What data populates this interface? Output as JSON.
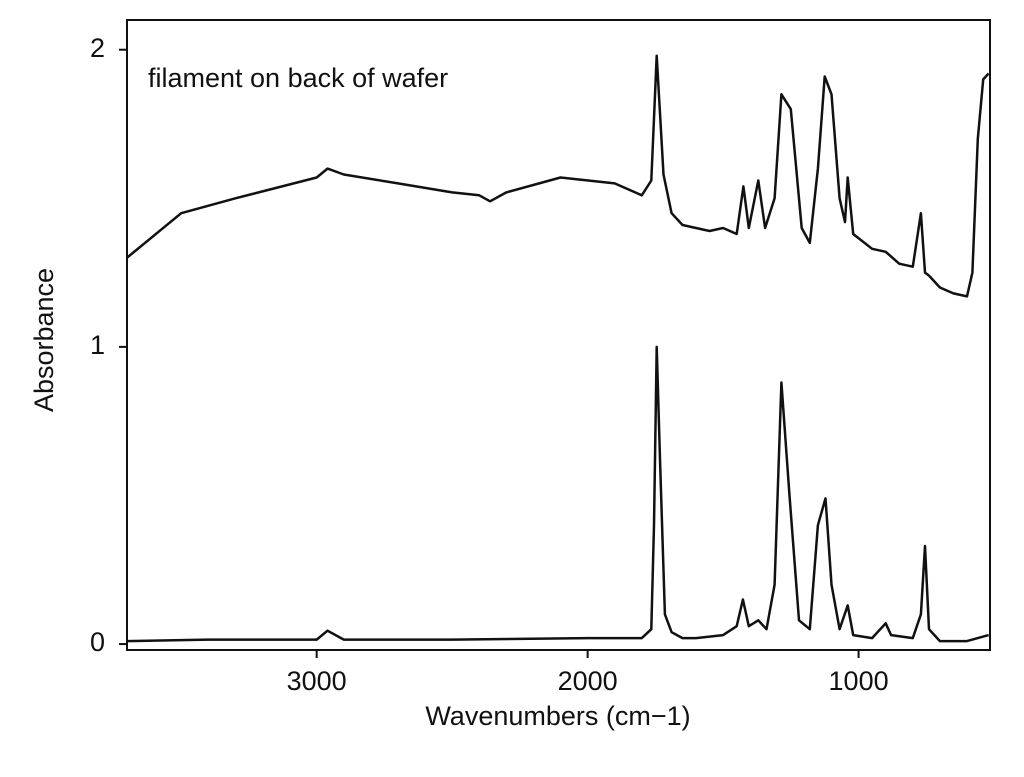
{
  "chart_data": {
    "type": "line",
    "annotation": "filament on back of wafer",
    "xlabel": "Wavenumbers (cm−1)",
    "ylabel": "Absorbance",
    "xlim": [
      3700,
      515
    ],
    "ylim": [
      -0.02,
      2.1
    ],
    "xticks": [
      3000,
      2000,
      1000
    ],
    "yticks": [
      0,
      1,
      2
    ],
    "series": [
      {
        "color": "#111111",
        "x": [
          3700,
          3500,
          3300,
          3000,
          2960,
          2900,
          2700,
          2500,
          2400,
          2360,
          2300,
          2100,
          1900,
          1800,
          1765,
          1745,
          1720,
          1690,
          1650,
          1600,
          1550,
          1500,
          1450,
          1425,
          1405,
          1370,
          1345,
          1310,
          1285,
          1250,
          1210,
          1180,
          1150,
          1125,
          1100,
          1070,
          1050,
          1040,
          1020,
          950,
          900,
          850,
          800,
          770,
          755,
          740,
          700,
          650,
          600,
          580,
          560,
          540,
          520
        ],
        "values": [
          1.3,
          1.45,
          1.5,
          1.57,
          1.6,
          1.58,
          1.55,
          1.52,
          1.51,
          1.49,
          1.52,
          1.57,
          1.55,
          1.51,
          1.56,
          1.98,
          1.58,
          1.45,
          1.41,
          1.4,
          1.39,
          1.4,
          1.38,
          1.54,
          1.4,
          1.56,
          1.4,
          1.5,
          1.85,
          1.8,
          1.4,
          1.35,
          1.6,
          1.91,
          1.85,
          1.5,
          1.42,
          1.57,
          1.38,
          1.33,
          1.32,
          1.28,
          1.27,
          1.45,
          1.25,
          1.24,
          1.2,
          1.18,
          1.17,
          1.25,
          1.7,
          1.9,
          1.92
        ]
      },
      {
        "color": "#111111",
        "x": [
          3700,
          3400,
          3000,
          2960,
          2900,
          2500,
          2000,
          1800,
          1765,
          1755,
          1745,
          1732,
          1715,
          1690,
          1650,
          1600,
          1500,
          1450,
          1427,
          1405,
          1370,
          1340,
          1310,
          1285,
          1255,
          1220,
          1180,
          1150,
          1122,
          1100,
          1070,
          1040,
          1020,
          950,
          900,
          880,
          800,
          770,
          755,
          740,
          700,
          600,
          520
        ],
        "values": [
          0.01,
          0.015,
          0.015,
          0.045,
          0.015,
          0.015,
          0.02,
          0.02,
          0.05,
          0.4,
          1.0,
          0.6,
          0.1,
          0.04,
          0.02,
          0.02,
          0.03,
          0.06,
          0.15,
          0.06,
          0.08,
          0.05,
          0.2,
          0.88,
          0.5,
          0.08,
          0.05,
          0.4,
          0.49,
          0.2,
          0.05,
          0.13,
          0.03,
          0.02,
          0.07,
          0.03,
          0.02,
          0.1,
          0.33,
          0.05,
          0.01,
          0.01,
          0.03
        ]
      }
    ]
  }
}
